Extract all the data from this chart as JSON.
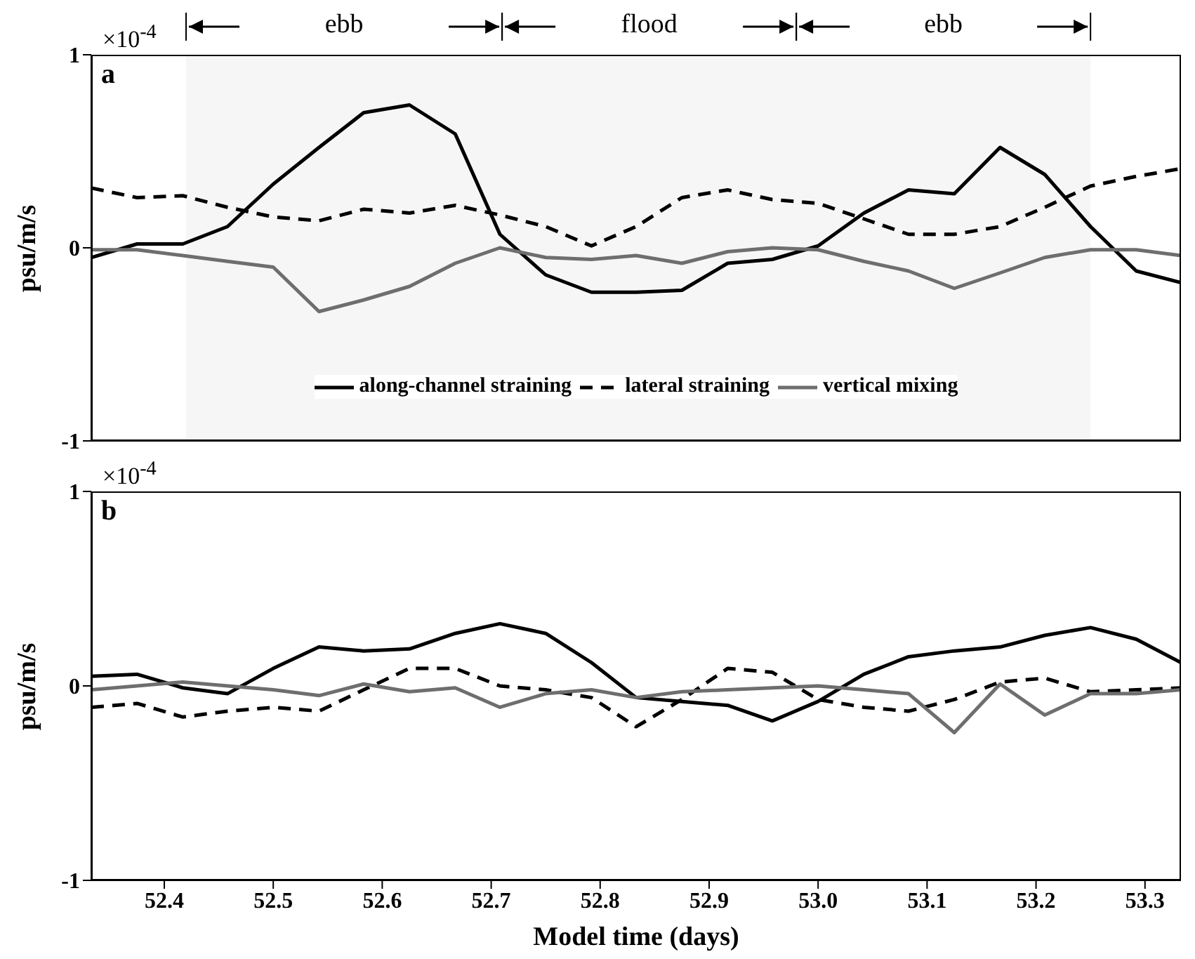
{
  "chart_data": [
    {
      "type": "line",
      "ylabel": "psu/m/s",
      "annotations": [
        "a",
        "×10$^{-4}$"
      ],
      "legend": "bottom",
      "tick_labels": "y",
      "x": [
        52.333,
        52.375,
        52.417,
        52.458,
        52.5,
        52.542,
        52.583,
        52.625,
        52.667,
        52.708,
        52.75,
        52.792,
        52.833,
        52.875,
        52.917,
        52.958,
        53.0,
        53.042,
        53.083,
        53.125,
        53.167,
        53.208,
        53.25,
        53.292,
        53.333
      ],
      "xlim": [
        52.333,
        53.333
      ],
      "xticks": [
        52.4,
        52.5,
        52.6,
        52.7,
        52.8,
        52.9,
        53.0,
        53.1,
        53.2,
        53.3
      ],
      "ylim": [
        -1,
        1
      ],
      "yticks": [
        -1,
        0,
        1
      ],
      "bands": [
        {
          "axis": "x",
          "from": 52.42,
          "to": 52.71,
          "label": "ebb"
        },
        {
          "axis": "x",
          "from": 52.71,
          "to": 52.98,
          "label": "flood"
        },
        {
          "axis": "x",
          "from": 52.98,
          "to": 53.25,
          "label": "ebb"
        }
      ],
      "series": [
        {
          "name": "along-channel straining",
          "color": "#000000",
          "line_style": "solid",
          "values": [
            -0.05,
            0.02,
            0.02,
            0.11,
            0.33,
            0.52,
            0.7,
            0.74,
            0.59,
            0.07,
            -0.14,
            -0.23,
            -0.23,
            -0.22,
            -0.08,
            -0.06,
            0.01,
            0.18,
            0.3,
            0.28,
            0.52,
            0.38,
            0.11,
            -0.12,
            -0.18
          ]
        },
        {
          "name": "lateral straining",
          "color": "#000000",
          "line_style": "dashed",
          "values": [
            0.31,
            0.26,
            0.27,
            0.21,
            0.16,
            0.14,
            0.2,
            0.18,
            0.22,
            0.17,
            0.11,
            0.01,
            0.11,
            0.26,
            0.3,
            0.25,
            0.23,
            0.15,
            0.07,
            0.07,
            0.11,
            0.21,
            0.32,
            0.37,
            0.41
          ]
        },
        {
          "name": "vertical mixing",
          "color": "#6e6e6e",
          "line_style": "solid",
          "values": [
            -0.01,
            -0.01,
            -0.04,
            -0.07,
            -0.1,
            -0.33,
            -0.27,
            -0.2,
            -0.08,
            0.0,
            -0.05,
            -0.06,
            -0.04,
            -0.08,
            -0.02,
            0.0,
            -0.01,
            -0.07,
            -0.12,
            -0.21,
            -0.13,
            -0.05,
            -0.01,
            -0.01,
            -0.04
          ]
        }
      ]
    },
    {
      "type": "line",
      "ylabel": "psu/m/s",
      "xlabel": "Model time (days)",
      "annotations": [
        "b",
        "×10$^{-4}$"
      ],
      "x": [
        52.333,
        52.375,
        52.417,
        52.458,
        52.5,
        52.542,
        52.583,
        52.625,
        52.667,
        52.708,
        52.75,
        52.792,
        52.833,
        52.875,
        52.917,
        52.958,
        53.0,
        53.042,
        53.083,
        53.125,
        53.167,
        53.208,
        53.25,
        53.292,
        53.333
      ],
      "xlim": [
        52.333,
        53.333
      ],
      "xticks": [
        52.4,
        52.5,
        52.6,
        52.7,
        52.8,
        52.9,
        {
          "value": 53.0,
          "label": "53.0"
        },
        53.1,
        53.2,
        53.3
      ],
      "ylim": [
        -1,
        1
      ],
      "yticks": [
        -1,
        0,
        1
      ],
      "series": [
        {
          "color": "#000000",
          "line_style": "solid",
          "values": [
            0.05,
            0.06,
            -0.01,
            -0.04,
            0.09,
            0.2,
            0.18,
            0.19,
            0.27,
            0.32,
            0.27,
            0.12,
            -0.06,
            -0.08,
            -0.1,
            -0.18,
            -0.08,
            0.06,
            0.15,
            0.18,
            0.2,
            0.26,
            0.3,
            0.24,
            0.12
          ]
        },
        {
          "color": "#000000",
          "line_style": "dashed",
          "values": [
            -0.11,
            -0.09,
            -0.16,
            -0.13,
            -0.11,
            -0.13,
            -0.02,
            0.09,
            0.09,
            0.0,
            -0.02,
            -0.06,
            -0.21,
            -0.07,
            0.09,
            0.07,
            -0.07,
            -0.11,
            -0.13,
            -0.07,
            0.02,
            0.04,
            -0.03,
            -0.02,
            -0.01
          ]
        },
        {
          "color": "#6e6e6e",
          "line_style": "solid",
          "values": [
            -0.02,
            0.0,
            0.02,
            0.0,
            -0.02,
            -0.05,
            0.01,
            -0.03,
            -0.01,
            -0.11,
            -0.04,
            -0.02,
            -0.06,
            -0.03,
            -0.02,
            -0.01,
            0.0,
            -0.02,
            -0.04,
            -0.24,
            0.01,
            -0.15,
            -0.04,
            -0.04,
            -0.02
          ]
        }
      ]
    }
  ]
}
